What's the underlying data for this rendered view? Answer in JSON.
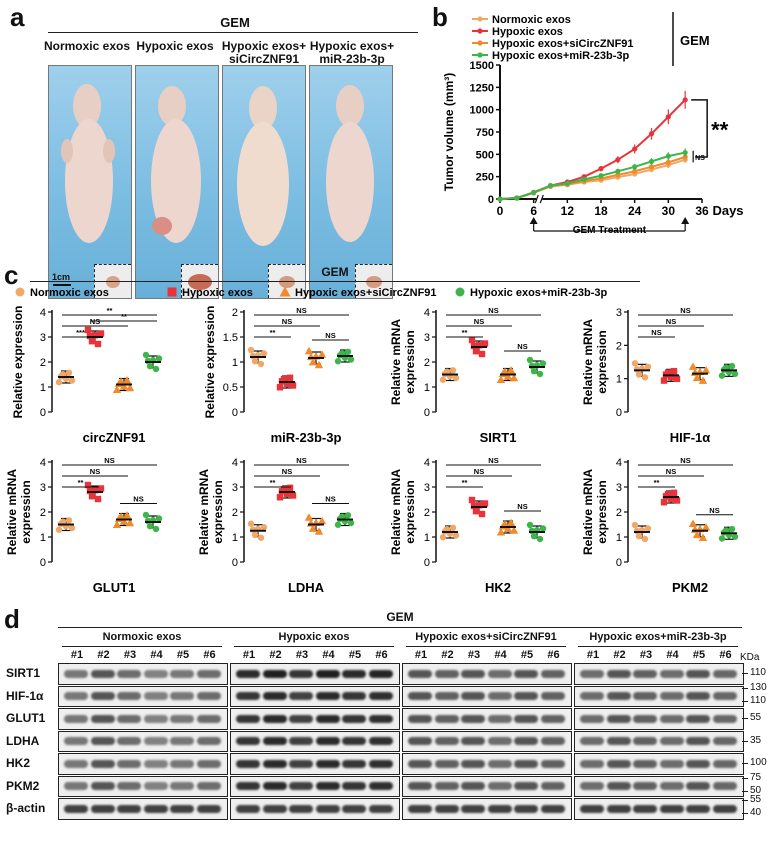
{
  "panel_a": {
    "label": "a",
    "top_header": "GEM",
    "groups": [
      "Normoxic exos",
      "Hypoxic exos",
      "Hypoxic exos+\nsiCircZNF91",
      "Hypoxic exos+\nmiR-23b-3p"
    ],
    "scale_bar": "1cm"
  },
  "panel_b": {
    "label": "b",
    "gem_label": "GEM",
    "gem_treatment_label": "GEM Treatment",
    "significance_main": "**",
    "significance_ns": "NS"
  },
  "panel_c": {
    "label": "c",
    "header": "GEM",
    "legend": [
      "Normoxic exos",
      "Hypoxic exos",
      "Hypoxic exos+siCircZNF91",
      "Hypoxic exos+miR-23b-3p"
    ]
  },
  "panel_d": {
    "label": "d",
    "header": "GEM",
    "groups": [
      "Normoxic exos",
      "Hypoxic exos",
      "Hypoxic exos+siCircZNF91",
      "Hypoxic exos+miR-23b-3p"
    ],
    "lanes": [
      "#1",
      "#2",
      "#3",
      "#4",
      "#5",
      "#6"
    ],
    "kda_label": "KDa",
    "proteins": [
      {
        "name": "SIRT1",
        "markers": [
          "110"
        ]
      },
      {
        "name": "HIF-1α",
        "markers": [
          "130",
          "110"
        ]
      },
      {
        "name": "GLUT1",
        "markers": [
          "55"
        ]
      },
      {
        "name": "LDHA",
        "markers": [
          "35"
        ]
      },
      {
        "name": "HK2",
        "markers": [
          "100"
        ]
      },
      {
        "name": "PKM2",
        "markers": [
          "75",
          "50"
        ]
      },
      {
        "name": "β-actin",
        "markers": [
          "55",
          "40"
        ]
      }
    ]
  },
  "colors": {
    "normoxic": "#f0a868",
    "hypoxic": "#e8333a",
    "sicirc": "#f08a2a",
    "mir": "#3db54a"
  },
  "chart_data": [
    {
      "type": "line",
      "id": "tumor_volume",
      "title": "",
      "xlabel": "Days",
      "ylabel": "Tumor volume (mm³)",
      "xticks": [
        0,
        6,
        12,
        18,
        24,
        30,
        36
      ],
      "yticks": [
        0,
        250,
        500,
        750,
        1000,
        1250,
        1500
      ],
      "xlim": [
        0,
        36
      ],
      "ylim": [
        0,
        1500
      ],
      "x": [
        0,
        3,
        6,
        9,
        12,
        15,
        18,
        21,
        24,
        27,
        30,
        33
      ],
      "series": [
        {
          "name": "Normoxic exos",
          "values": [
            0,
            10,
            70,
            140,
            160,
            190,
            210,
            245,
            280,
            330,
            380,
            440
          ]
        },
        {
          "name": "Hypoxic exos",
          "values": [
            0,
            12,
            75,
            150,
            190,
            250,
            340,
            440,
            560,
            730,
            920,
            1110
          ]
        },
        {
          "name": "Hypoxic exos+siCircZNF91",
          "values": [
            0,
            10,
            70,
            145,
            165,
            200,
            230,
            270,
            310,
            360,
            410,
            470
          ]
        },
        {
          "name": "Hypoxic exos+miR-23b-3p",
          "values": [
            0,
            11,
            72,
            150,
            175,
            220,
            260,
            310,
            360,
            420,
            480,
            520
          ]
        }
      ]
    },
    {
      "type": "scatter",
      "id": "circZNF91",
      "xlabel": "circZNF91",
      "ylabel": "Relative expression",
      "ylim": [
        0,
        4
      ],
      "yticks": [
        0,
        1,
        2,
        3,
        4
      ],
      "means": [
        1.4,
        3.0,
        1.1,
        2.0
      ],
      "significance": [
        {
          "pair": [
            0,
            1
          ],
          "label": "***"
        },
        {
          "pair": [
            0,
            2
          ],
          "label": "NS"
        },
        {
          "pair": [
            0,
            3
          ],
          "label": "**"
        },
        {
          "pair": [
            1,
            3
          ],
          "label": "**"
        }
      ]
    },
    {
      "type": "scatter",
      "id": "miR-23b-3p",
      "xlabel": "miR-23b-3p",
      "ylabel": "Relative expression",
      "ylim": [
        0,
        2.0
      ],
      "yticks": [
        0,
        0.5,
        1.0,
        1.5,
        2.0
      ],
      "means": [
        1.1,
        0.6,
        1.08,
        1.12
      ],
      "significance": [
        {
          "pair": [
            0,
            1
          ],
          "label": "**"
        },
        {
          "pair": [
            0,
            2
          ],
          "label": "NS"
        },
        {
          "pair": [
            0,
            3
          ],
          "label": "NS"
        },
        {
          "pair": [
            2,
            3
          ],
          "label": "NS"
        }
      ]
    },
    {
      "type": "scatter",
      "id": "SIRT1",
      "xlabel": "SIRT1",
      "ylabel": "Relative mRNA expression",
      "ylim": [
        0,
        4
      ],
      "yticks": [
        0,
        1,
        2,
        3,
        4
      ],
      "means": [
        1.5,
        2.6,
        1.5,
        1.8
      ],
      "significance": [
        {
          "pair": [
            0,
            1
          ],
          "label": "**"
        },
        {
          "pair": [
            0,
            2
          ],
          "label": "NS"
        },
        {
          "pair": [
            0,
            3
          ],
          "label": "NS"
        },
        {
          "pair": [
            2,
            3
          ],
          "label": "NS"
        }
      ]
    },
    {
      "type": "scatter",
      "id": "HIF-1α",
      "xlabel": "HIF-1α",
      "ylabel": "Relative mRNA expression",
      "ylim": [
        0,
        3
      ],
      "yticks": [
        0,
        1,
        2,
        3
      ],
      "means": [
        1.25,
        1.1,
        1.15,
        1.25
      ],
      "significance": [
        {
          "pair": [
            0,
            1
          ],
          "label": "NS"
        },
        {
          "pair": [
            0,
            2
          ],
          "label": "NS"
        },
        {
          "pair": [
            0,
            3
          ],
          "label": "NS"
        }
      ]
    },
    {
      "type": "scatter",
      "id": "GLUT1",
      "xlabel": "GLUT1",
      "ylabel": "Relative mRNA expression",
      "ylim": [
        0,
        4
      ],
      "yticks": [
        0,
        1,
        2,
        3,
        4
      ],
      "means": [
        1.5,
        2.8,
        1.7,
        1.6
      ],
      "significance": [
        {
          "pair": [
            0,
            1
          ],
          "label": "**"
        },
        {
          "pair": [
            0,
            2
          ],
          "label": "NS"
        },
        {
          "pair": [
            0,
            3
          ],
          "label": "NS"
        },
        {
          "pair": [
            2,
            3
          ],
          "label": "NS"
        }
      ]
    },
    {
      "type": "scatter",
      "id": "LDHA",
      "xlabel": "LDHA",
      "ylabel": "Relative mRNA expression",
      "ylim": [
        0,
        4
      ],
      "yticks": [
        0,
        1,
        2,
        3,
        4
      ],
      "means": [
        1.25,
        2.8,
        1.5,
        1.7
      ],
      "significance": [
        {
          "pair": [
            0,
            1
          ],
          "label": "**"
        },
        {
          "pair": [
            0,
            2
          ],
          "label": "NS"
        },
        {
          "pair": [
            0,
            3
          ],
          "label": "NS"
        },
        {
          "pair": [
            2,
            3
          ],
          "label": "NS"
        }
      ]
    },
    {
      "type": "scatter",
      "id": "HK2",
      "xlabel": "HK2",
      "ylabel": "Relative mRNA expression",
      "ylim": [
        0,
        4
      ],
      "yticks": [
        0,
        1,
        2,
        3,
        4
      ],
      "means": [
        1.2,
        2.2,
        1.4,
        1.2
      ],
      "significance": [
        {
          "pair": [
            0,
            1
          ],
          "label": "**"
        },
        {
          "pair": [
            0,
            2
          ],
          "label": "NS"
        },
        {
          "pair": [
            0,
            3
          ],
          "label": "NS"
        },
        {
          "pair": [
            2,
            3
          ],
          "label": "NS"
        }
      ]
    },
    {
      "type": "scatter",
      "id": "PKM2",
      "xlabel": "PKM2",
      "ylabel": "Relative mRNA expression",
      "ylim": [
        0,
        4
      ],
      "yticks": [
        0,
        1,
        2,
        3,
        4
      ],
      "means": [
        1.2,
        2.6,
        1.25,
        1.15
      ],
      "significance": [
        {
          "pair": [
            0,
            1
          ],
          "label": "**"
        },
        {
          "pair": [
            0,
            2
          ],
          "label": "NS"
        },
        {
          "pair": [
            0,
            3
          ],
          "label": "NS"
        },
        {
          "pair": [
            2,
            3
          ],
          "label": "NS"
        }
      ]
    }
  ]
}
